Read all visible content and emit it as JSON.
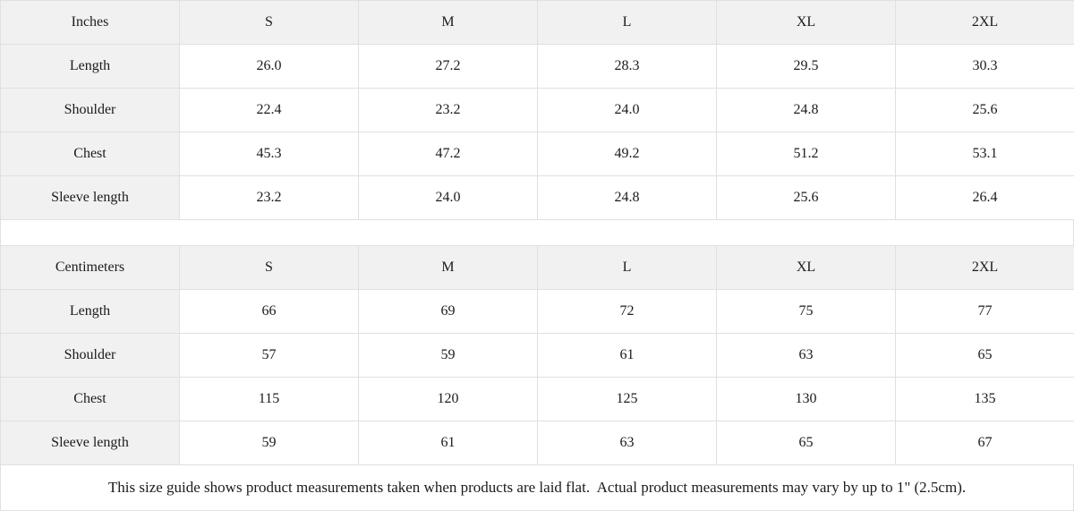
{
  "chart_data": [
    {
      "type": "table",
      "unit_label": "Inches",
      "size_headers": [
        "S",
        "M",
        "L",
        "XL",
        "2XL"
      ],
      "rows": [
        {
          "label": "Length",
          "values": [
            "26.0",
            "27.2",
            "28.3",
            "29.5",
            "30.3"
          ]
        },
        {
          "label": "Shoulder",
          "values": [
            "22.4",
            "23.2",
            "24.0",
            "24.8",
            "25.6"
          ]
        },
        {
          "label": "Chest",
          "values": [
            "45.3",
            "47.2",
            "49.2",
            "51.2",
            "53.1"
          ]
        },
        {
          "label": "Sleeve length",
          "values": [
            "23.2",
            "24.0",
            "24.8",
            "25.6",
            "26.4"
          ]
        }
      ]
    },
    {
      "type": "table",
      "unit_label": "Centimeters",
      "size_headers": [
        "S",
        "M",
        "L",
        "XL",
        "2XL"
      ],
      "rows": [
        {
          "label": "Length",
          "values": [
            "66",
            "69",
            "72",
            "75",
            "77"
          ]
        },
        {
          "label": "Shoulder",
          "values": [
            "57",
            "59",
            "61",
            "63",
            "65"
          ]
        },
        {
          "label": "Chest",
          "values": [
            "115",
            "120",
            "125",
            "130",
            "135"
          ]
        },
        {
          "label": "Sleeve length",
          "values": [
            "59",
            "61",
            "63",
            "65",
            "67"
          ]
        }
      ]
    }
  ],
  "note": "This size guide shows product measurements taken when products are laid flat.  Actual product measurements may vary by up to 1\" (2.5cm).",
  "colors": {
    "header_bg": "#f1f1f1",
    "border": "#e0e0e0",
    "text": "#1b1b1b",
    "background": "#ffffff"
  }
}
